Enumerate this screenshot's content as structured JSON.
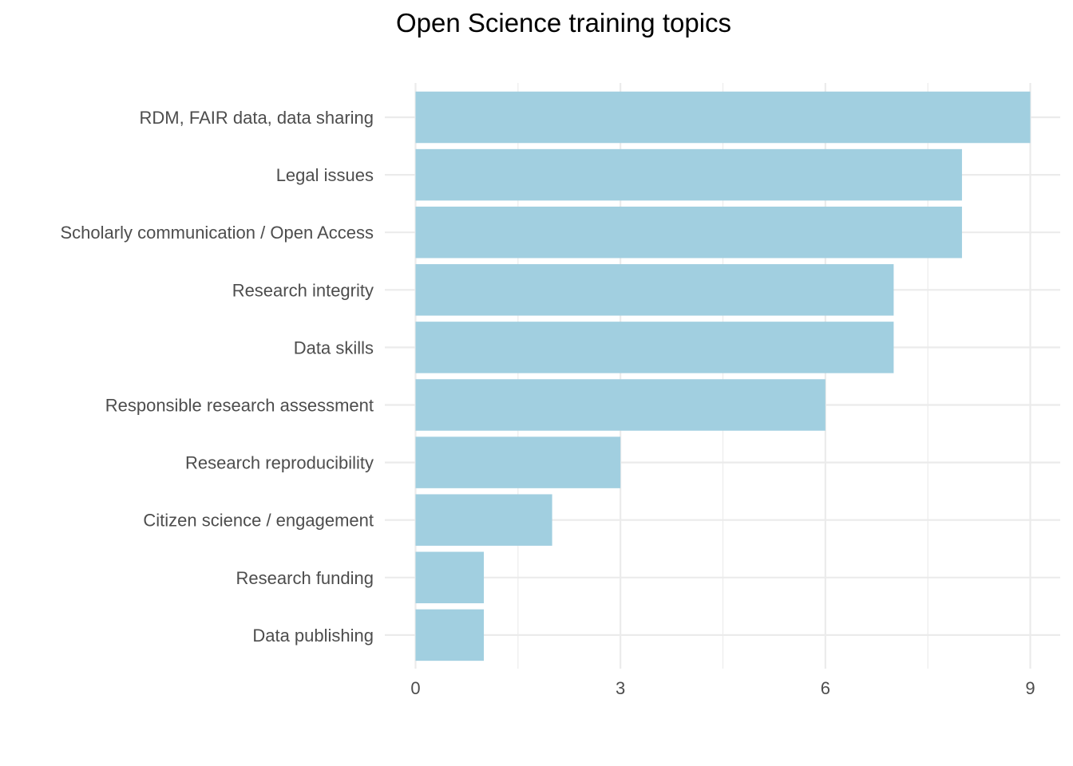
{
  "chart_data": {
    "type": "bar",
    "orientation": "horizontal",
    "title": "Open Science training topics",
    "xlabel": "",
    "ylabel": "",
    "categories": [
      "RDM, FAIR data, data sharing",
      "Legal issues",
      "Scholarly communication / Open Access",
      "Research integrity",
      "Data skills",
      "Responsible research assessment",
      "Research reproducibility",
      "Citizen science / engagement",
      "Research funding",
      "Data publishing"
    ],
    "values": [
      9,
      8,
      8,
      7,
      7,
      6,
      3,
      2,
      1,
      1
    ],
    "xlim": [
      0,
      9
    ],
    "x_ticks": [
      "0",
      "3",
      "6",
      "9"
    ],
    "grid": true,
    "legend": "none",
    "bar_color": "#a1cfe0",
    "grid_color": "#ebebeb"
  }
}
